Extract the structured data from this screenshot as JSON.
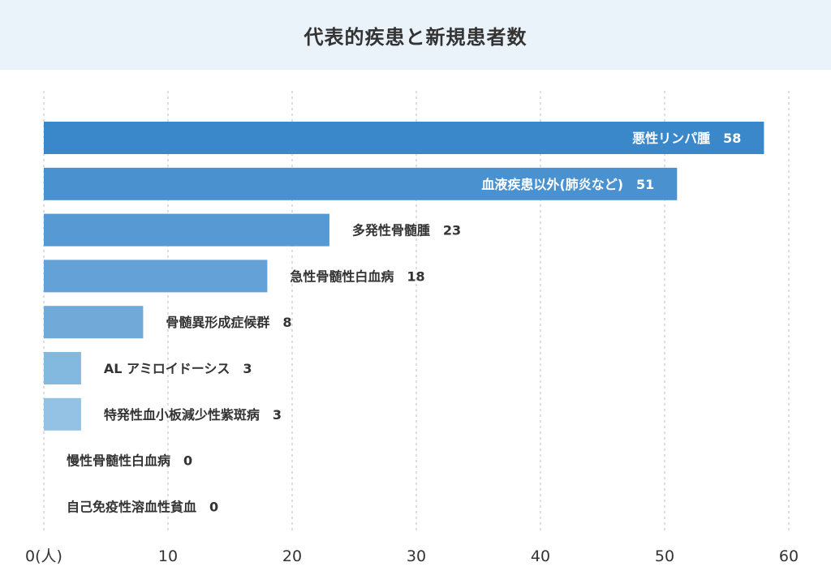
{
  "header": {
    "title": "代表的疾患と新規患者数"
  },
  "chart_data": {
    "type": "bar",
    "orientation": "horizontal",
    "title": "代表的疾患と新規患者数",
    "xlim": [
      0,
      60
    ],
    "x_ticks": [
      0,
      10,
      20,
      30,
      40,
      50,
      60
    ],
    "x_unit_label": "(人)",
    "grid": "vertical dashed",
    "categories": [
      "悪性リンパ腫",
      "血液疾患以外(肺炎など)",
      "多発性骨髄腫",
      "急性骨髄性白血病",
      "骨髄異形成症候群",
      "AL アミロイドーシス",
      "特発性血小板減少性紫斑病",
      "慢性骨髄性白血病",
      "自己免疫性溶血性貧血"
    ],
    "values": [
      58,
      51,
      23,
      18,
      8,
      3,
      3,
      0,
      0
    ],
    "colors": [
      "#3a87c9",
      "#4a91cf",
      "#5799d3",
      "#63a1d6",
      "#71aad8",
      "#84b9df",
      "#93c2e4",
      "#9fc8e6",
      "#aacfe9"
    ]
  }
}
